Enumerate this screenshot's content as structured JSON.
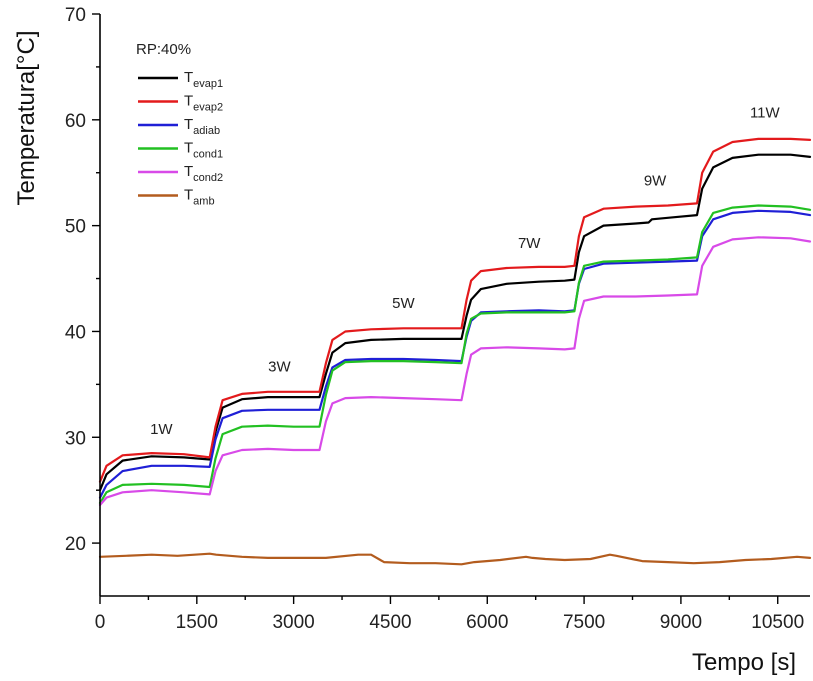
{
  "chart_data": {
    "type": "line",
    "title": "",
    "xlabel": "Tempo [s]",
    "ylabel": "Temperatura[°C]",
    "xlim": [
      0,
      11000
    ],
    "ylim": [
      15,
      70
    ],
    "xticks": [
      0,
      1500,
      3000,
      4500,
      6000,
      7500,
      9000,
      10500
    ],
    "yticks": [
      20,
      30,
      40,
      50,
      60,
      70
    ],
    "grid": false,
    "legend_placement": "top-left",
    "legend_title": "RP:40%",
    "annotations": [
      {
        "text": "1W",
        "x": 950,
        "y": 30.3
      },
      {
        "text": "3W",
        "x": 2780,
        "y": 36.2
      },
      {
        "text": "5W",
        "x": 4700,
        "y": 42.2
      },
      {
        "text": "7W",
        "x": 6650,
        "y": 47.9
      },
      {
        "text": "9W",
        "x": 8600,
        "y": 53.8
      },
      {
        "text": "11W",
        "x": 10300,
        "y": 60.2
      }
    ],
    "series": [
      {
        "name": "T",
        "sub": "evap1",
        "color": "#000000",
        "x": [
          0,
          100,
          350,
          800,
          1300,
          1700,
          1790,
          1900,
          2200,
          2600,
          3000,
          3400,
          3500,
          3600,
          3800,
          4200,
          4700,
          5200,
          5600,
          5680,
          5750,
          5900,
          6300,
          6800,
          7200,
          7350,
          7420,
          7500,
          7800,
          8300,
          8500,
          8550,
          8900,
          9250,
          9330,
          9500,
          9800,
          10200,
          10700,
          11000
        ],
        "y": [
          25.0,
          26.5,
          27.8,
          28.2,
          28.1,
          27.9,
          30.5,
          32.8,
          33.6,
          33.8,
          33.8,
          33.8,
          36.0,
          38.0,
          38.9,
          39.2,
          39.3,
          39.3,
          39.3,
          41.5,
          43.0,
          44.0,
          44.5,
          44.7,
          44.8,
          44.9,
          47.5,
          49.0,
          50.0,
          50.2,
          50.3,
          50.6,
          50.8,
          51.0,
          53.5,
          55.5,
          56.4,
          56.7,
          56.7,
          56.5
        ]
      },
      {
        "name": "T",
        "sub": "evap2",
        "color": "#e31a1c",
        "x": [
          0,
          100,
          350,
          800,
          1300,
          1700,
          1790,
          1900,
          2200,
          2600,
          3000,
          3400,
          3500,
          3600,
          3800,
          4200,
          4700,
          5200,
          5600,
          5680,
          5750,
          5900,
          6300,
          6800,
          7200,
          7350,
          7420,
          7500,
          7800,
          8300,
          8800,
          9250,
          9330,
          9500,
          9800,
          10200,
          10700,
          11000
        ],
        "y": [
          25.8,
          27.3,
          28.3,
          28.5,
          28.4,
          28.1,
          31.0,
          33.5,
          34.1,
          34.3,
          34.3,
          34.3,
          37.0,
          39.2,
          40.0,
          40.2,
          40.3,
          40.3,
          40.3,
          43.0,
          44.8,
          45.7,
          46.0,
          46.1,
          46.1,
          46.2,
          49.0,
          50.8,
          51.6,
          51.8,
          51.9,
          52.1,
          55.0,
          57.0,
          57.9,
          58.2,
          58.2,
          58.1
        ]
      },
      {
        "name": "T",
        "sub": "adiab",
        "color": "#1f1fd6",
        "x": [
          0,
          100,
          350,
          800,
          1300,
          1700,
          1790,
          1900,
          2200,
          2600,
          3000,
          3400,
          3500,
          3600,
          3800,
          4200,
          4700,
          5200,
          5600,
          5680,
          5750,
          5900,
          6300,
          6800,
          7200,
          7350,
          7420,
          7500,
          7800,
          8300,
          8800,
          9250,
          9330,
          9500,
          9800,
          10200,
          10700,
          11000
        ],
        "y": [
          24.3,
          25.5,
          26.8,
          27.3,
          27.3,
          27.2,
          29.8,
          31.8,
          32.5,
          32.6,
          32.6,
          32.6,
          34.8,
          36.6,
          37.3,
          37.4,
          37.4,
          37.3,
          37.2,
          39.5,
          41.0,
          41.8,
          41.9,
          42.0,
          41.9,
          42.0,
          44.5,
          45.9,
          46.4,
          46.5,
          46.6,
          46.7,
          49.0,
          50.6,
          51.2,
          51.4,
          51.3,
          51.0
        ]
      },
      {
        "name": "T",
        "sub": "cond1",
        "color": "#22c022",
        "x": [
          0,
          100,
          350,
          800,
          1300,
          1700,
          1790,
          1900,
          2200,
          2600,
          3000,
          3400,
          3500,
          3600,
          3800,
          4200,
          4700,
          5200,
          5600,
          5680,
          5750,
          5900,
          6300,
          6800,
          7200,
          7350,
          7420,
          7500,
          7800,
          8300,
          8800,
          9250,
          9330,
          9500,
          9800,
          10200,
          10700,
          11000
        ],
        "y": [
          23.8,
          24.8,
          25.5,
          25.6,
          25.5,
          25.3,
          28.0,
          30.3,
          31.0,
          31.1,
          31.0,
          31.0,
          34.0,
          36.3,
          37.1,
          37.2,
          37.2,
          37.1,
          37.0,
          39.8,
          41.2,
          41.7,
          41.8,
          41.8,
          41.8,
          41.9,
          44.6,
          46.2,
          46.6,
          46.7,
          46.8,
          47.0,
          49.4,
          51.2,
          51.7,
          51.9,
          51.8,
          51.5
        ]
      },
      {
        "name": "T",
        "sub": "cond2",
        "color": "#d84ae8",
        "x": [
          0,
          100,
          350,
          800,
          1300,
          1700,
          1790,
          1900,
          2200,
          2600,
          3000,
          3400,
          3500,
          3600,
          3800,
          4200,
          4700,
          5200,
          5600,
          5680,
          5750,
          5900,
          6300,
          6800,
          7200,
          7350,
          7420,
          7500,
          7800,
          8300,
          8800,
          9250,
          9330,
          9500,
          9800,
          10200,
          10700,
          11000
        ],
        "y": [
          23.6,
          24.3,
          24.8,
          25.0,
          24.8,
          24.6,
          26.8,
          28.3,
          28.8,
          28.9,
          28.8,
          28.8,
          31.5,
          33.2,
          33.7,
          33.8,
          33.7,
          33.6,
          33.5,
          36.0,
          37.8,
          38.4,
          38.5,
          38.4,
          38.3,
          38.4,
          41.2,
          42.9,
          43.3,
          43.3,
          43.4,
          43.5,
          46.2,
          48.0,
          48.7,
          48.9,
          48.8,
          48.5
        ]
      },
      {
        "name": "T",
        "sub": "amb",
        "color": "#b35c1e",
        "x": [
          0,
          400,
          800,
          1200,
          1700,
          1800,
          2200,
          2600,
          3000,
          3500,
          4000,
          4200,
          4400,
          4800,
          5200,
          5600,
          5800,
          6200,
          6600,
          6700,
          6900,
          7200,
          7600,
          7900,
          8000,
          8400,
          8800,
          9200,
          9600,
          10000,
          10400,
          10800,
          11000
        ],
        "y": [
          18.7,
          18.8,
          18.9,
          18.8,
          19.0,
          18.9,
          18.7,
          18.6,
          18.6,
          18.6,
          18.9,
          18.9,
          18.2,
          18.1,
          18.1,
          18.0,
          18.2,
          18.4,
          18.7,
          18.6,
          18.5,
          18.4,
          18.5,
          18.9,
          18.8,
          18.3,
          18.2,
          18.1,
          18.2,
          18.4,
          18.5,
          18.7,
          18.6
        ]
      }
    ]
  }
}
